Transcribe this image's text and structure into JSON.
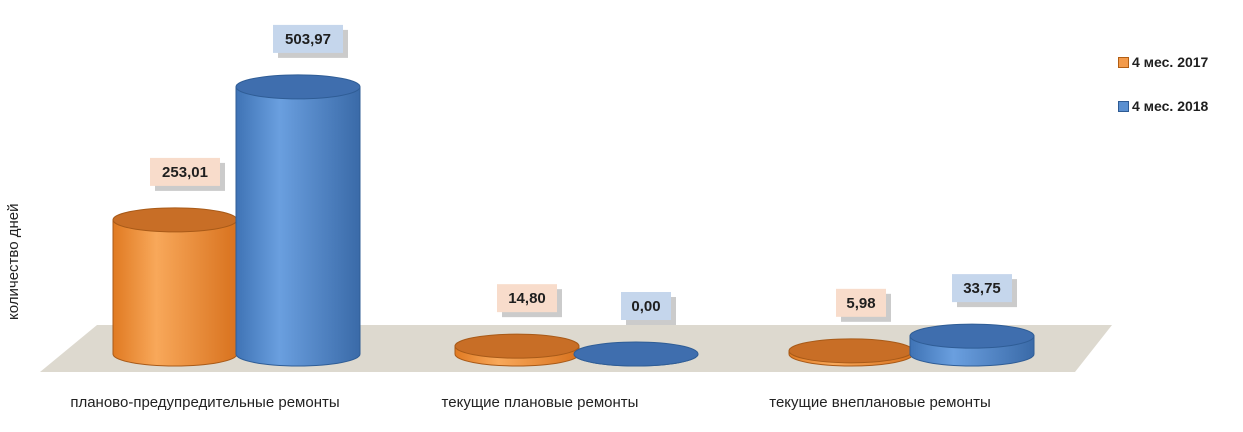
{
  "chart_data": {
    "type": "bar",
    "style": "3d-cylinder",
    "title": "",
    "xlabel": "",
    "ylabel": "количество дней",
    "categories": [
      "планово-предупредительные ремонты",
      "текущие плановые ремонты",
      "текущие внеплановые ремонты"
    ],
    "series": [
      {
        "name": "4 мес. 2017",
        "values": [
          253.01,
          14.8,
          5.98
        ],
        "labels": [
          "253,01",
          "14,80",
          "5,98"
        ],
        "color": "#f39a4a",
        "label_bg": "#f8dccb"
      },
      {
        "name": "4 мес. 2018",
        "values": [
          503.97,
          0.0,
          33.75
        ],
        "labels": [
          "503,97",
          "0,00",
          "33,75"
        ],
        "color": "#5a8fd0",
        "label_bg": "#c5d6ec"
      }
    ],
    "legend_position": "right",
    "grid": false
  }
}
